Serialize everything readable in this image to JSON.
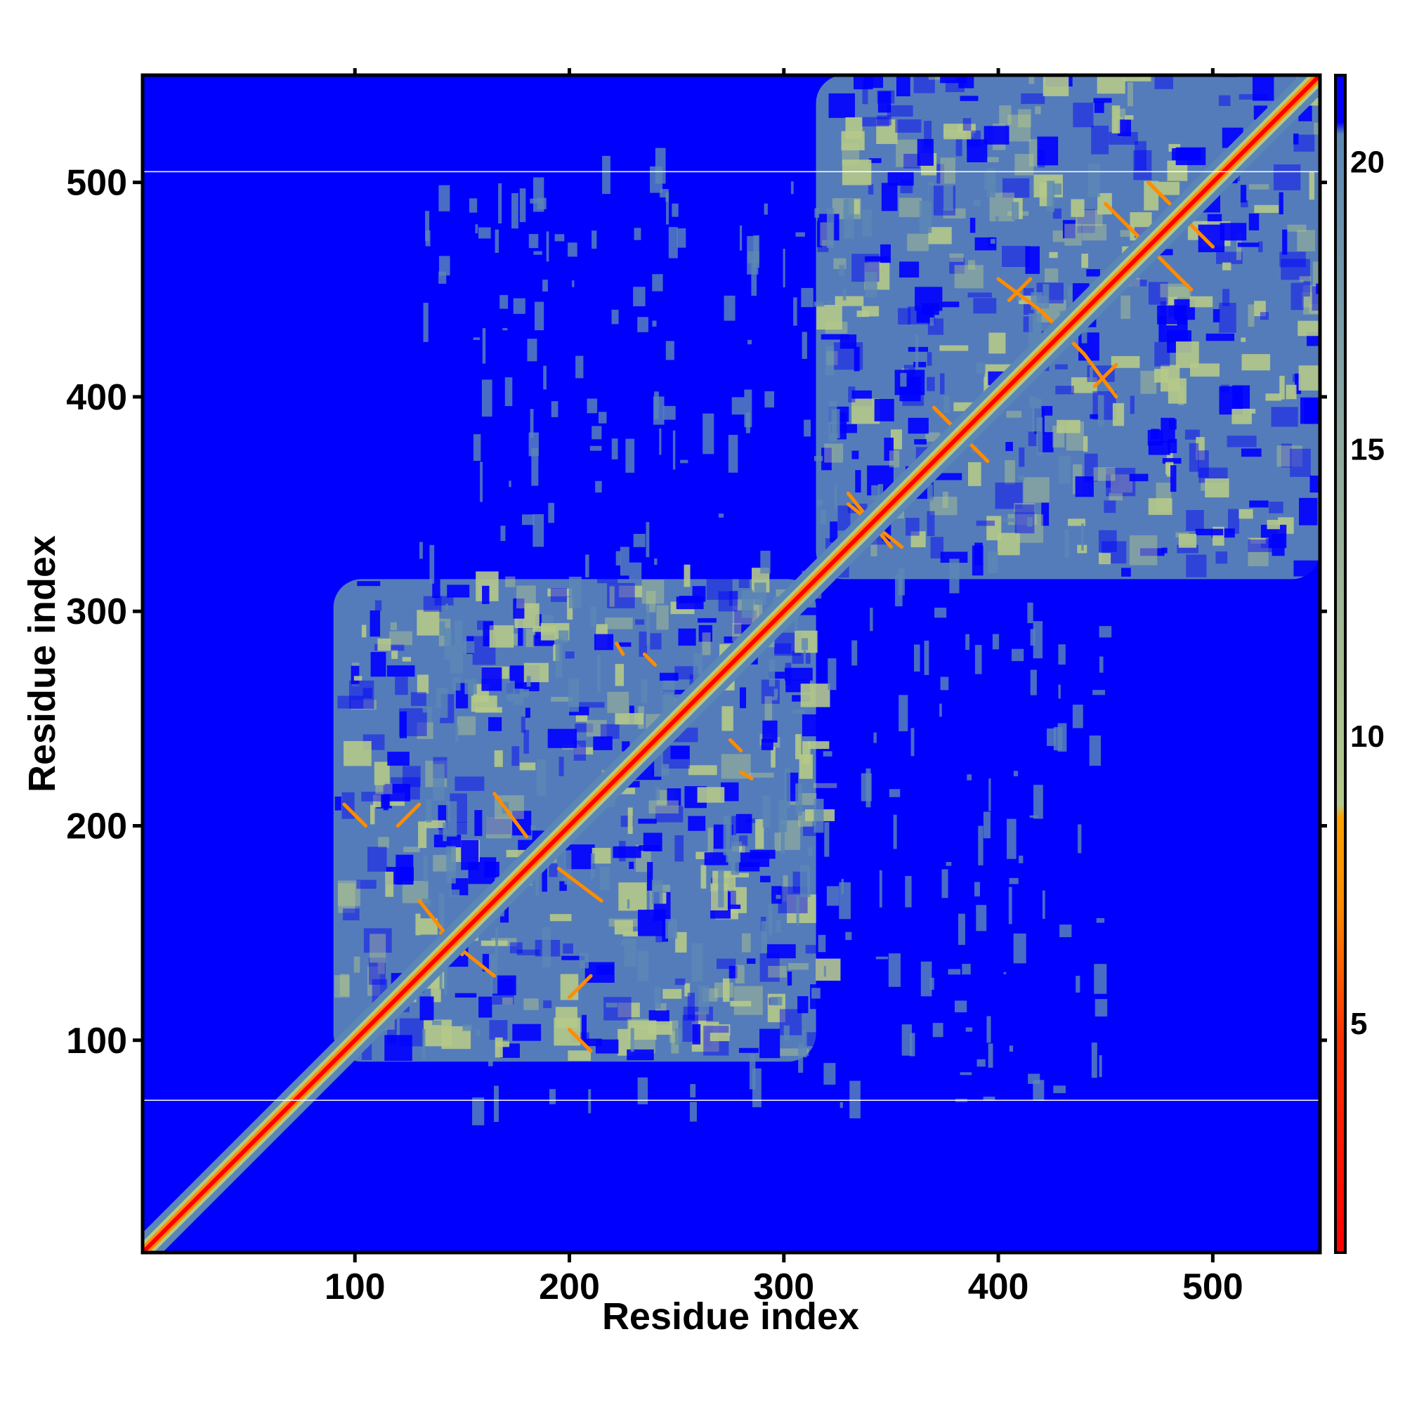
{
  "chart_data": {
    "type": "heatmap",
    "title": "",
    "xlabel": "Residue index",
    "ylabel": "Residue index",
    "xlim": [
      1,
      550
    ],
    "ylim": [
      1,
      550
    ],
    "x_ticks": [
      100,
      200,
      300,
      400,
      500
    ],
    "y_ticks": [
      100,
      200,
      300,
      400,
      500
    ],
    "colorbar": {
      "ticks": [
        5,
        10,
        15,
        20
      ],
      "range": [
        1,
        21.5
      ],
      "colors": {
        "near": "#ff0000",
        "mid": "#ff8c00",
        "contact_edge": "#b5c98a",
        "far": "#5b87b5",
        "none": "#0000ff"
      },
      "threshold_contact": 8
    },
    "domains": [
      {
        "name": "",
        "start": 90,
        "end": 315
      },
      {
        "name": "",
        "start": 315,
        "end": 550
      }
    ],
    "white_lines_y": [
      72,
      505
    ],
    "diagonal": {
      "from": 1,
      "to": 550
    }
  }
}
